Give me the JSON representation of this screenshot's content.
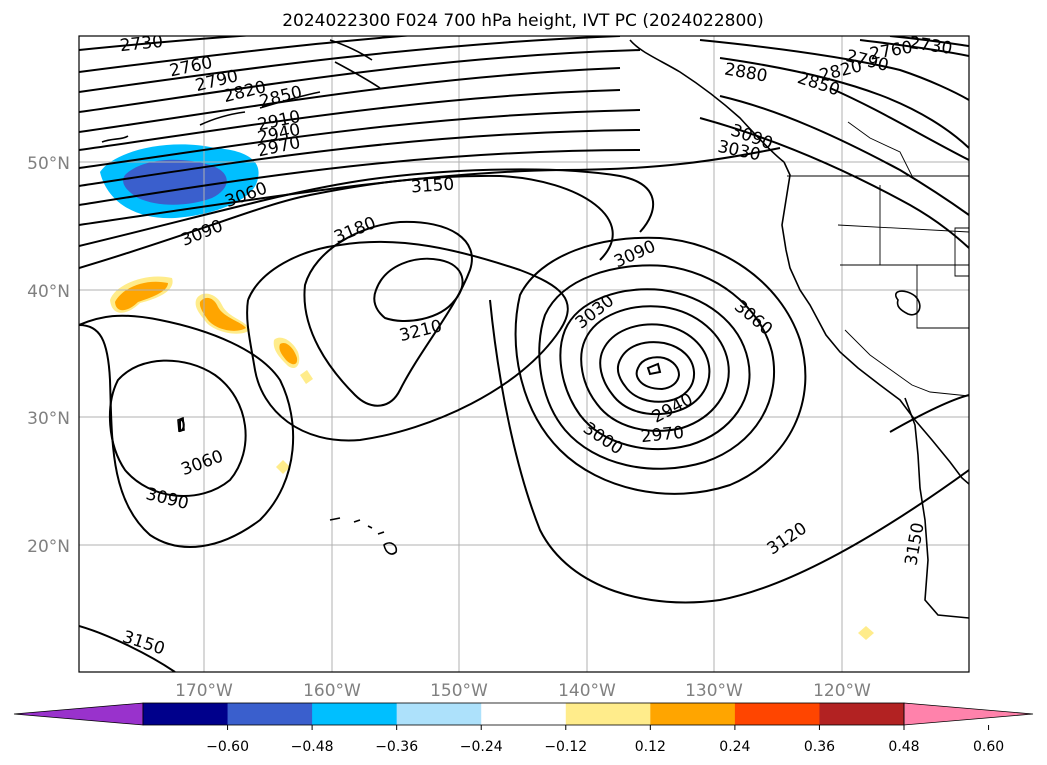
{
  "title": "2024022300 F024 700 hPa height, IVT PC (2024022800)",
  "lat_labels": [
    "50°N",
    "40°N",
    "30°N",
    "20°N"
  ],
  "lon_labels": [
    "170°W",
    "160°W",
    "150°W",
    "140°W",
    "130°W",
    "120°W"
  ],
  "contour_labels": {
    "c2730a": "2730",
    "c2760a": "2760",
    "c2790a": "2790",
    "c2820a": "2820",
    "c2850a": "2850",
    "c2910": "2910",
    "c2940a": "2940",
    "c2970a": "2970",
    "c3060a": "3060",
    "c3090a": "3090",
    "c3150a": "3150",
    "c3180": "3180",
    "c3210": "3210",
    "c3090b": "3090",
    "c3030": "3030",
    "c3060b": "3060",
    "c3000": "3000",
    "c2970b": "2970",
    "c2940b": "2940",
    "c3120": "3120",
    "c3150b": "3150",
    "c3060c": "3060",
    "c3090c": "3090",
    "c3150c": "3150",
    "c2880": "2880",
    "c2850b": "2850",
    "c2820b": "2820",
    "c2790b": "2790",
    "c2760b": "2760",
    "c2730b": "2730",
    "c3090d": "3090",
    "c3030b": "3030"
  },
  "colorbar": {
    "colors": [
      "#9932CC",
      "#00008B",
      "#3A5FCD",
      "#00BFFF",
      "#ADE1FB",
      "#FFFFFF",
      "#FFEC8B",
      "#FFA500",
      "#FF4500",
      "#B22222",
      "#FF82AB"
    ],
    "ticks": [
      "−0.60",
      "−0.48",
      "−0.36",
      "−0.24",
      "−0.12",
      "0.12",
      "0.24",
      "0.36",
      "0.48",
      "0.60"
    ]
  },
  "legend_colors": {
    "contour": "#000000",
    "grid": "#b0b0b0",
    "axis_label": "#808080"
  }
}
